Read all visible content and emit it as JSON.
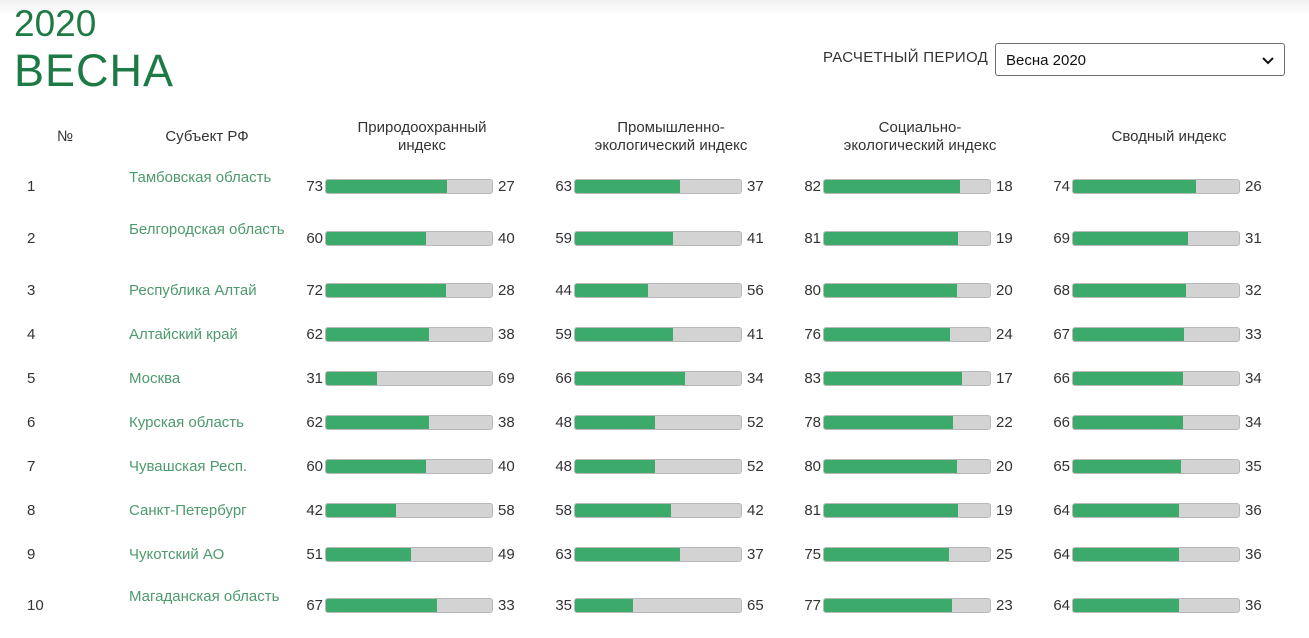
{
  "header": {
    "year": "2020",
    "season": "ВЕСНА"
  },
  "period": {
    "label": "РАСЧЕТНЫЙ ПЕРИОД",
    "selected": "Весна 2020"
  },
  "columns": {
    "num": "№",
    "subject": "Субъект РФ",
    "metric1": [
      "Природоохранный",
      "индекс"
    ],
    "metric2": [
      "Промышленно-",
      "экологический индекс"
    ],
    "metric3": [
      "Социально-",
      "экологический индекс"
    ],
    "metric4": [
      "Сводный индекс"
    ]
  },
  "colors": {
    "accent": "#1e7a45",
    "link": "#4d9a6d",
    "bar_fill": "#3caa6b",
    "bar_track": "#d3d3d3"
  },
  "rows": [
    {
      "n": "1",
      "name": "Тамбовская область",
      "m": [
        [
          73,
          27
        ],
        [
          63,
          37
        ],
        [
          82,
          18
        ],
        [
          74,
          26
        ]
      ]
    },
    {
      "n": "2",
      "name": "Белгородская область",
      "m": [
        [
          60,
          40
        ],
        [
          59,
          41
        ],
        [
          81,
          19
        ],
        [
          69,
          31
        ]
      ]
    },
    {
      "n": "3",
      "name": "Республика Алтай",
      "m": [
        [
          72,
          28
        ],
        [
          44,
          56
        ],
        [
          80,
          20
        ],
        [
          68,
          32
        ]
      ]
    },
    {
      "n": "4",
      "name": "Алтайский край",
      "m": [
        [
          62,
          38
        ],
        [
          59,
          41
        ],
        [
          76,
          24
        ],
        [
          67,
          33
        ]
      ]
    },
    {
      "n": "5",
      "name": "Москва",
      "m": [
        [
          31,
          69
        ],
        [
          66,
          34
        ],
        [
          83,
          17
        ],
        [
          66,
          34
        ]
      ]
    },
    {
      "n": "6",
      "name": "Курская область",
      "m": [
        [
          62,
          38
        ],
        [
          48,
          52
        ],
        [
          78,
          22
        ],
        [
          66,
          34
        ]
      ]
    },
    {
      "n": "7",
      "name": "Чувашская Респ.",
      "m": [
        [
          60,
          40
        ],
        [
          48,
          52
        ],
        [
          80,
          20
        ],
        [
          65,
          35
        ]
      ]
    },
    {
      "n": "8",
      "name": "Санкт-Петербург",
      "m": [
        [
          42,
          58
        ],
        [
          58,
          42
        ],
        [
          81,
          19
        ],
        [
          64,
          36
        ]
      ]
    },
    {
      "n": "9",
      "name": "Чукотский АО",
      "m": [
        [
          51,
          49
        ],
        [
          63,
          37
        ],
        [
          75,
          25
        ],
        [
          64,
          36
        ]
      ]
    },
    {
      "n": "10",
      "name": "Магаданская область",
      "m": [
        [
          67,
          33
        ],
        [
          35,
          65
        ],
        [
          77,
          23
        ],
        [
          64,
          36
        ]
      ]
    }
  ]
}
